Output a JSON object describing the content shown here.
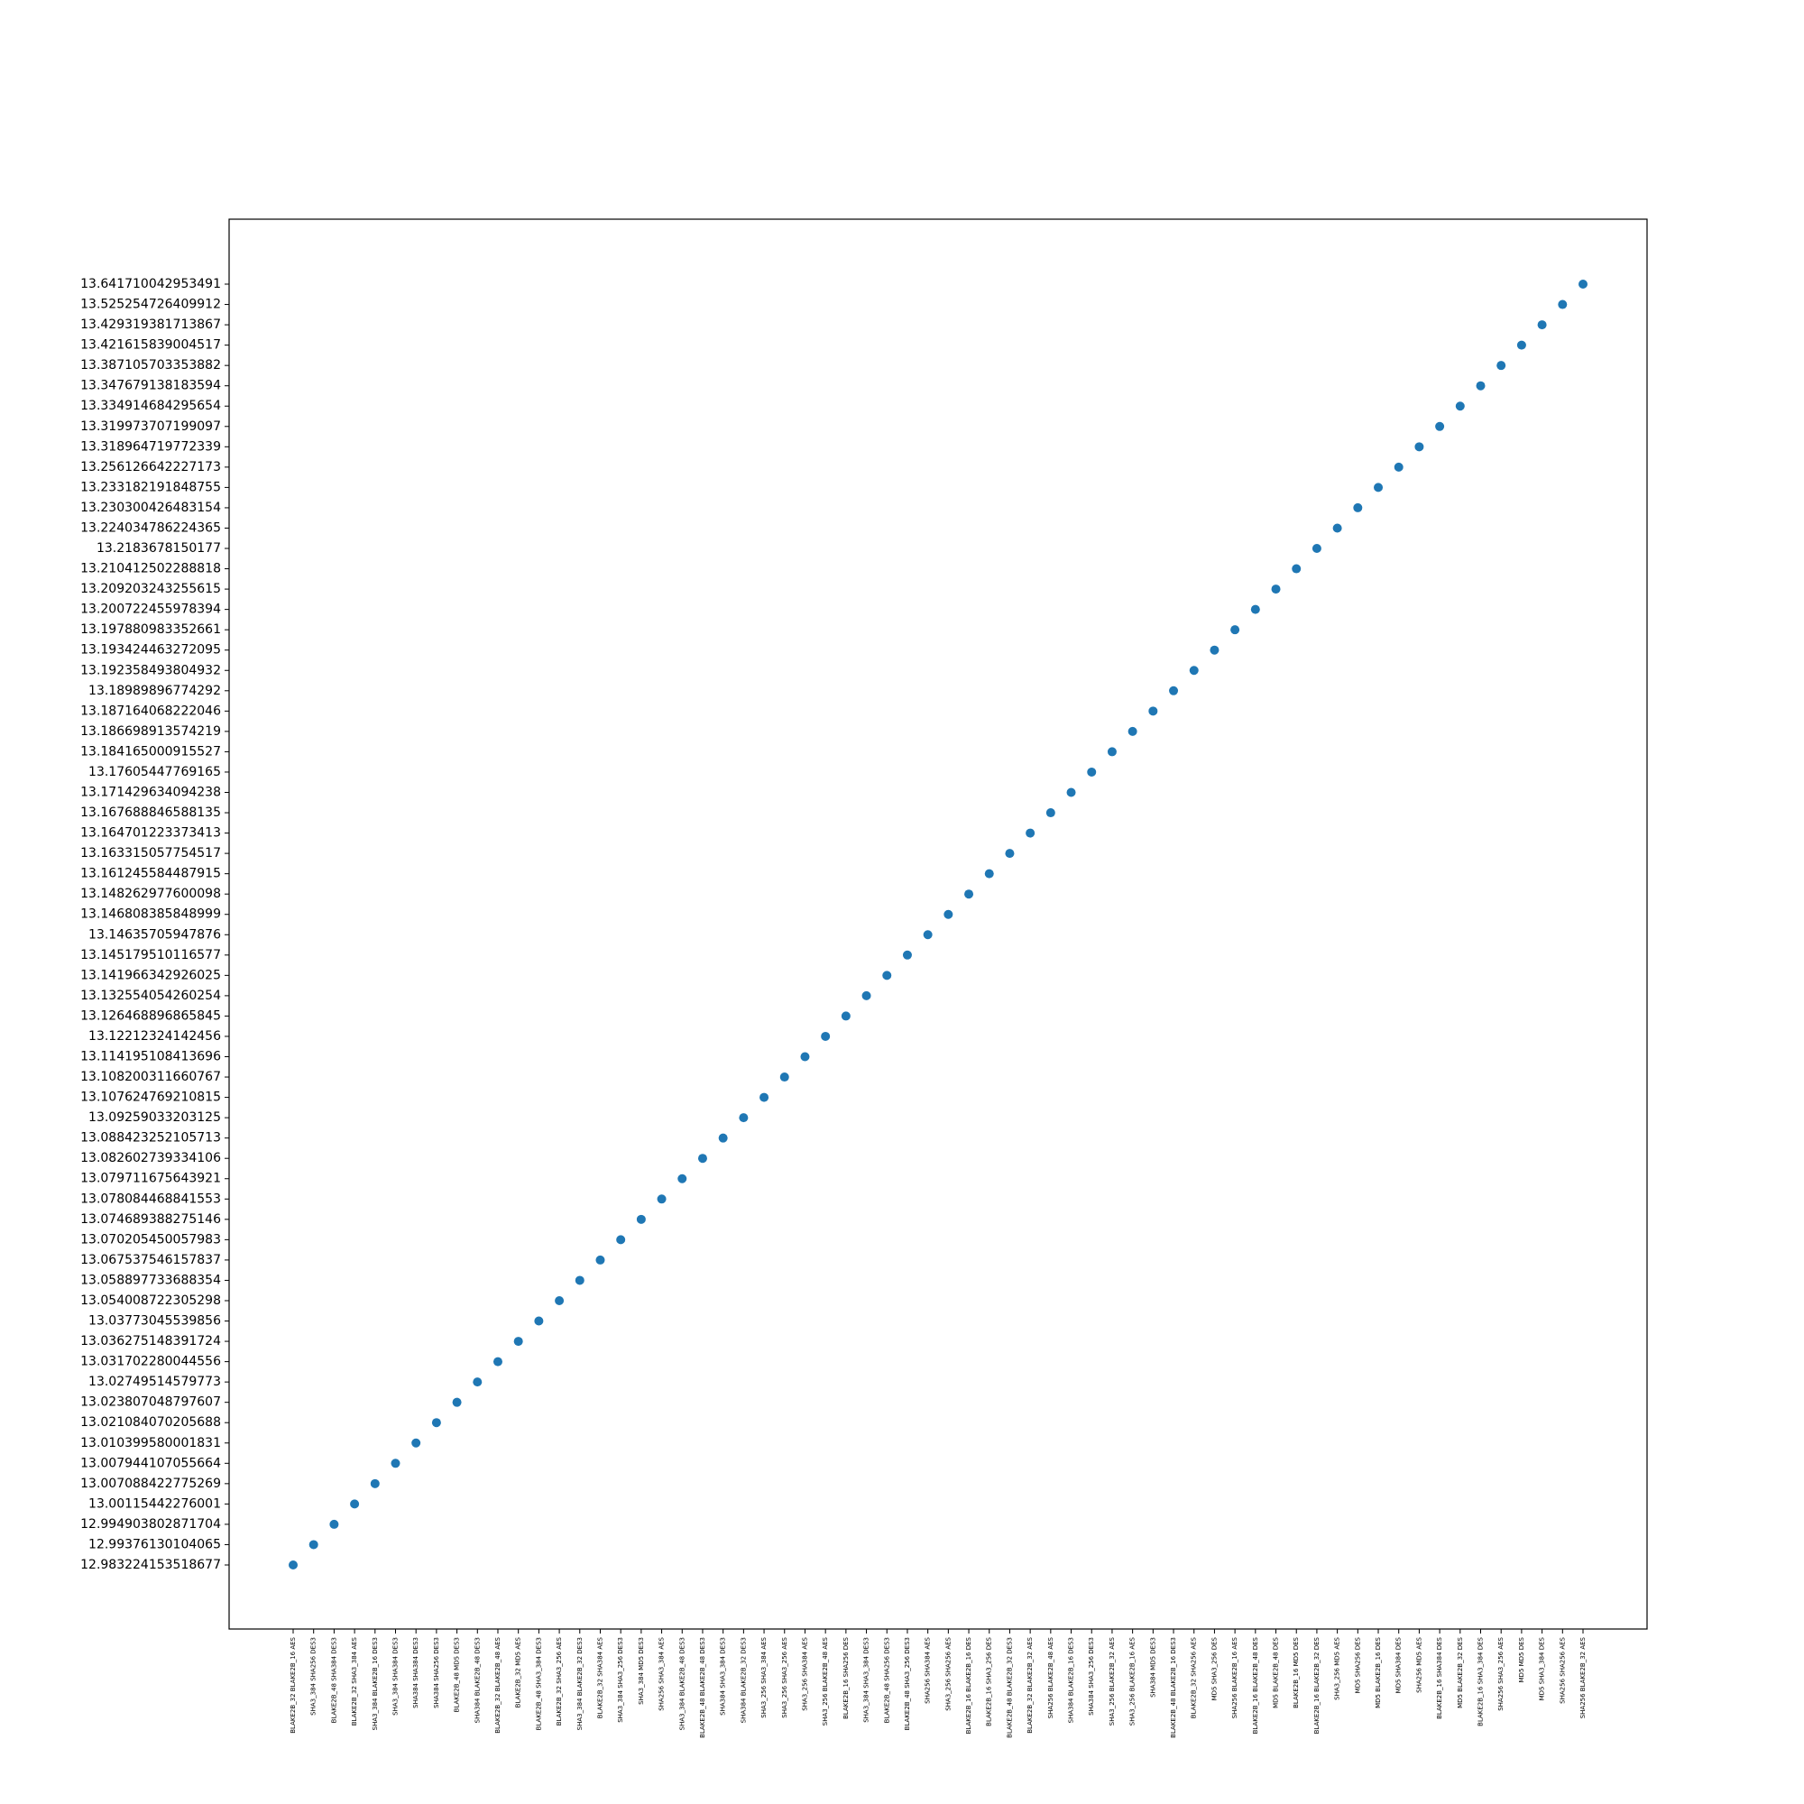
{
  "chart_data": {
    "type": "scatter",
    "color": "#1f77b4",
    "categories": [
      "BLAKE2B_32 BLAKE2B_16 AES",
      "SHA3_384 SHA256 DES3",
      "BLAKE2B_48 SHA384 DES3",
      "BLAKE2B_32 SHA3_384 AES",
      "SHA3_384 BLAKE2B_16 DES3",
      "SHA3_384 SHA384 DES3",
      "SHA384 SHA384 DES3",
      "SHA384 SHA256 DES3",
      "BLAKE2B_48 MD5 DES3",
      "SHA384 BLAKE2B_48 DES3",
      "BLAKE2B_32 BLAKE2B_48 AES",
      "BLAKE2B_32 MD5 AES",
      "BLAKE2B_48 SHA3_384 DES3",
      "BLAKE2B_32 SHA3_256 AES",
      "SHA3_384 BLAKE2B_32 DES3",
      "BLAKE2B_32 SHA384 AES",
      "SHA3_384 SHA3_256 DES3",
      "SHA3_384 MD5 DES3",
      "SHA256 SHA3_384 AES",
      "SHA3_384 BLAKE2B_48 DES3",
      "BLAKE2B_48 BLAKE2B_48 DES3",
      "SHA384 SHA3_384 DES3",
      "SHA384 BLAKE2B_32 DES3",
      "SHA3_256 SHA3_384 AES",
      "SHA3_256 SHA3_256 AES",
      "SHA3_256 SHA384 AES",
      "SHA3_256 BLAKE2B_48 AES",
      "BLAKE2B_16 SHA256 DES",
      "SHA3_384 SHA3_384 DES3",
      "BLAKE2B_48 SHA256 DES3",
      "BLAKE2B_48 SHA3_256 DES3",
      "SHA256 SHA384 AES",
      "SHA3_256 SHA256 AES",
      "BLAKE2B_16 BLAKE2B_16 DES",
      "BLAKE2B_16 SHA3_256 DES",
      "BLAKE2B_48 BLAKE2B_32 DES3",
      "BLAKE2B_32 BLAKE2B_32 AES",
      "SHA256 BLAKE2B_48 AES",
      "SHA384 BLAKE2B_16 DES3",
      "SHA384 SHA3_256 DES3",
      "SHA3_256 BLAKE2B_32 AES",
      "SHA3_256 BLAKE2B_16 AES",
      "SHA384 MD5 DES3",
      "BLAKE2B_48 BLAKE2B_16 DES3",
      "BLAKE2B_32 SHA256 AES",
      "MD5 SHA3_256 DES",
      "SHA256 BLAKE2B_16 AES",
      "BLAKE2B_16 BLAKE2B_48 DES",
      "MD5 BLAKE2B_48 DES",
      "BLAKE2B_16 MD5 DES",
      "BLAKE2B_16 BLAKE2B_32 DES",
      "SHA3_256 MD5 AES",
      "MD5 SHA256 DES",
      "MD5 BLAKE2B_16 DES",
      "MD5 SHA384 DES",
      "SHA256 MD5 AES",
      "BLAKE2B_16 SHA384 DES",
      "MD5 BLAKE2B_32 DES",
      "BLAKE2B_16 SHA3_384 DES",
      "SHA256 SHA3_256 AES",
      "MD5 MD5 DES",
      "MD5 SHA3_384 DES",
      "SHA256 SHA256 AES",
      "SHA256 BLAKE2B_32 AES"
    ],
    "y_categories": [
      "12.983224153518677",
      "12.99376130104065",
      "12.994903802871704",
      "13.00115442276001",
      "13.007088422775269",
      "13.007944107055664",
      "13.010399580001831",
      "13.021084070205688",
      "13.023807048797607",
      "13.02749514579773",
      "13.031702280044556",
      "13.036275148391724",
      "13.03773045539856",
      "13.054008722305298",
      "13.058897733688354",
      "13.067537546157837",
      "13.070205450057983",
      "13.074689388275146",
      "13.078084468841553",
      "13.079711675643921",
      "13.082602739334106",
      "13.088423252105713",
      "13.09259033203125",
      "13.107624769210815",
      "13.108200311660767",
      "13.114195108413696",
      "13.12212324142456",
      "13.126468896865845",
      "13.132554054260254",
      "13.141966342926025",
      "13.145179510116577",
      "13.14635705947876",
      "13.146808385848999",
      "13.148262977600098",
      "13.161245584487915",
      "13.163315057754517",
      "13.164701223373413",
      "13.167688846588135",
      "13.171429634094238",
      "13.17605447769165",
      "13.184165000915527",
      "13.186698913574219",
      "13.187164068222046",
      "13.18989896774292",
      "13.192358493804932",
      "13.193424463272095",
      "13.197880983352661",
      "13.200722455978394",
      "13.209203243255615",
      "13.210412502288818",
      "13.2183678150177",
      "13.224034786224365",
      "13.230300426483154",
      "13.233182191848755",
      "13.256126642227173",
      "13.318964719772339",
      "13.319973707199097",
      "13.334914684295654",
      "13.347679138183594",
      "13.387105703353882",
      "13.421615839004517",
      "13.429319381713867",
      "13.525254726409912",
      "13.641710042953491"
    ]
  }
}
